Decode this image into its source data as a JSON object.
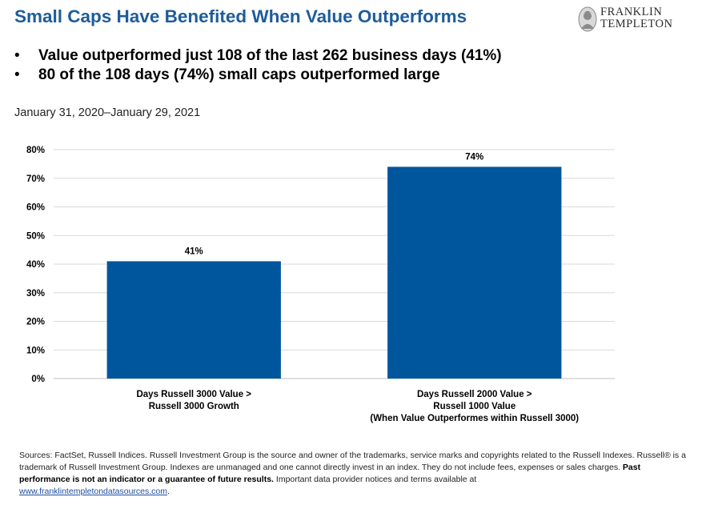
{
  "header": {
    "title": "Small Caps Have Benefited When Value Outperforms",
    "logo_line1": "FRANKLIN",
    "logo_line2": "TEMPLETON"
  },
  "bullets": [
    "Value outperformed just 108 of the last 262 business days (41%)",
    "80 of the 108 days (74%) small caps outperformed large"
  ],
  "bullet_glyph": "•",
  "date_range": "January 31, 2020–January 29, 2021",
  "chart_data": {
    "type": "bar",
    "categories": [
      [
        "Days Russell 3000 Value >",
        "Russell 3000 Growth"
      ],
      [
        "Days Russell 2000 Value >",
        "Russell 1000 Value",
        "(When Value Outperformes within Russell 3000)"
      ]
    ],
    "values": [
      41,
      74
    ],
    "data_labels": [
      "41%",
      "74%"
    ],
    "yticks": [
      "0%",
      "10%",
      "20%",
      "30%",
      "40%",
      "50%",
      "60%",
      "70%",
      "80%"
    ],
    "ylim": [
      0,
      80
    ],
    "grid": true,
    "bar_color": "#00569c"
  },
  "footnote": {
    "text1": "Sources: FactSet, Russell Indices. Russell Investment Group is the source and owner of the trademarks, service marks and copyrights related to the Russell Indexes. Russell® is a trademark of Russell Investment Group.  Indexes are unmanaged and one cannot directly invest in an index. They do not include fees, expenses or sales charges. ",
    "bold": "Past performance is not an indicator or a guarantee of future results.",
    "text2": "  Important data provider notices and terms available at ",
    "link": "www.franklintempletondatasources.com",
    "end": "."
  }
}
